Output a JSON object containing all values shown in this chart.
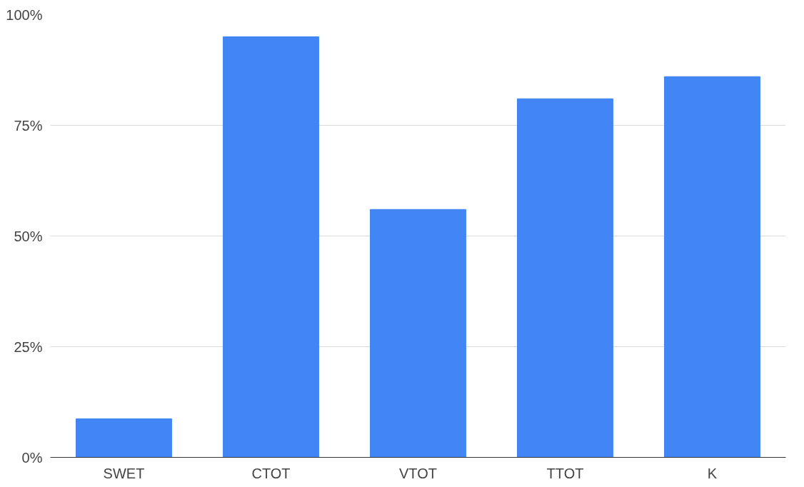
{
  "chart_data": {
    "type": "bar",
    "categories": [
      "SWET",
      "CTOT",
      "VTOT",
      "TTOT",
      "K"
    ],
    "values": [
      8.7,
      95,
      56,
      81,
      86
    ],
    "color": "#4285f4",
    "ylim": [
      0,
      100
    ],
    "yticks": [
      {
        "value": 0,
        "label": "0%"
      },
      {
        "value": 25,
        "label": "25%"
      },
      {
        "value": 50,
        "label": "50%"
      },
      {
        "value": 75,
        "label": "75%"
      },
      {
        "value": 100,
        "label": "100%"
      }
    ],
    "grid": "y"
  }
}
